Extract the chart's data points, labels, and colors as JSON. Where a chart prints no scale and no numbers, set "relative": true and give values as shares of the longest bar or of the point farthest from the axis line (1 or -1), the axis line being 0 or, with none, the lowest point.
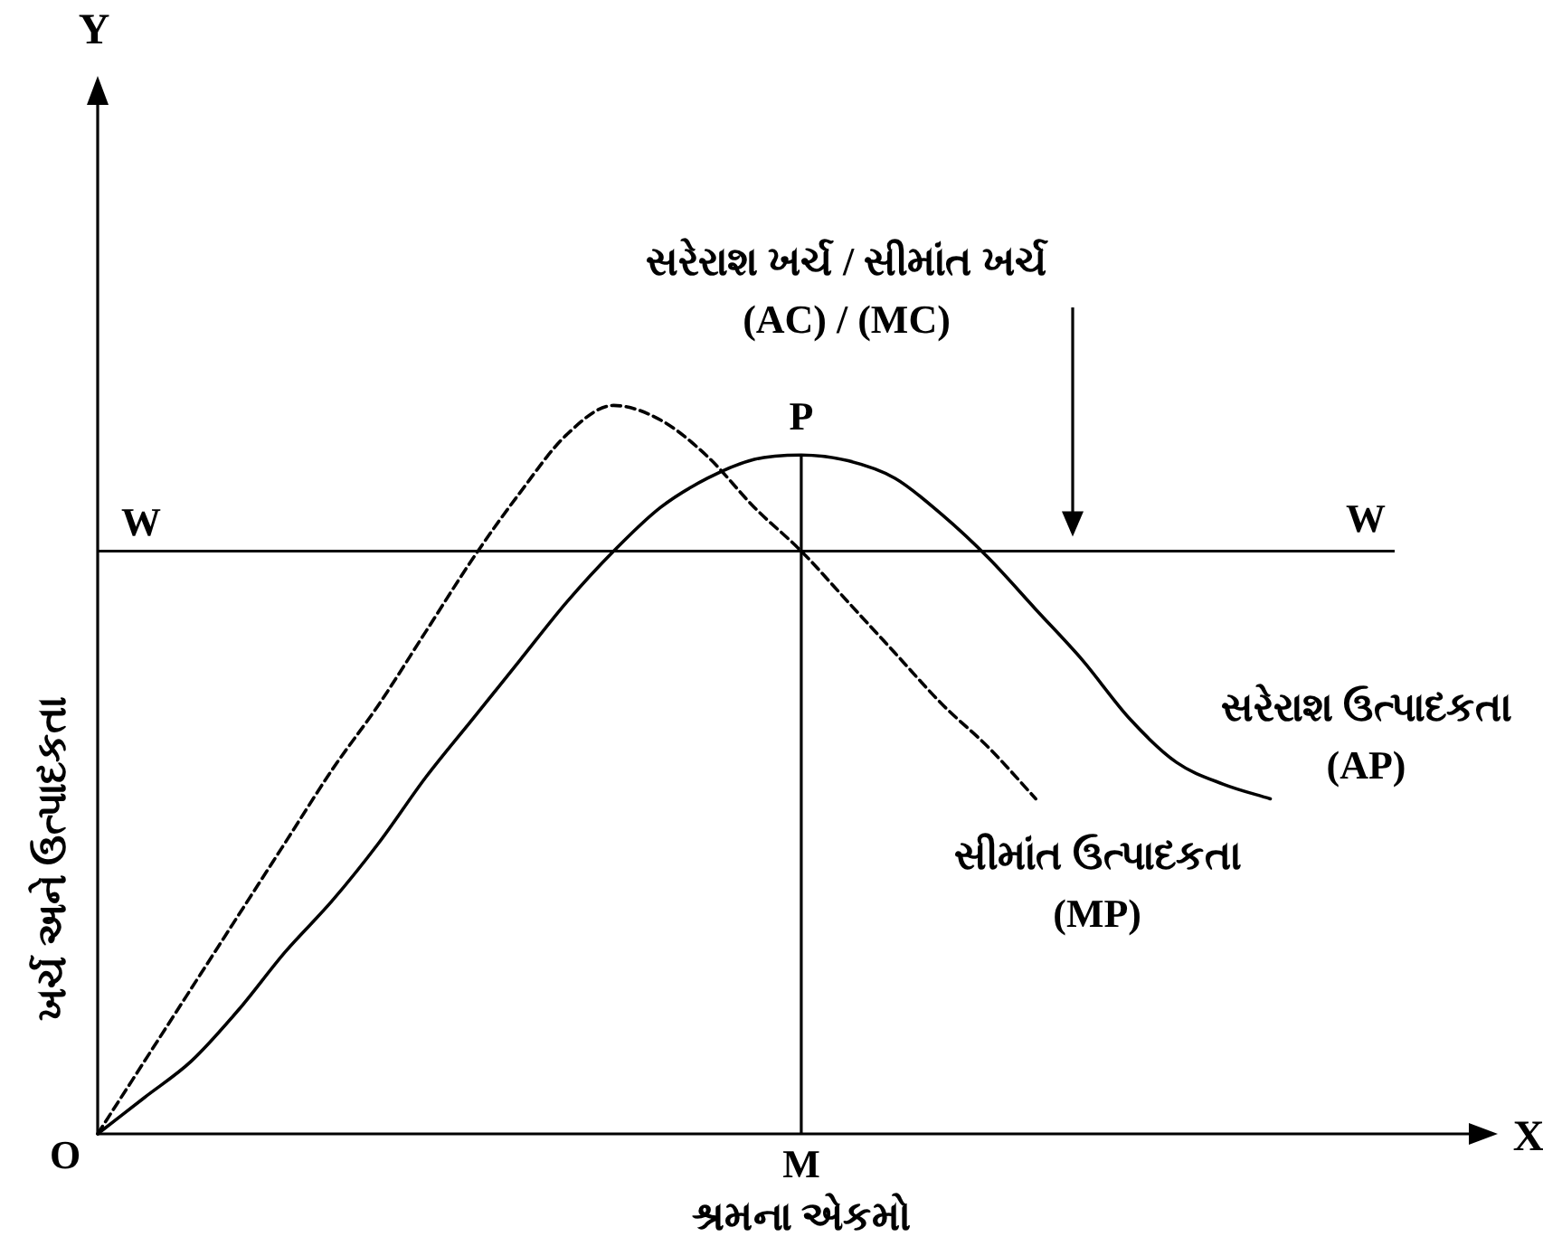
{
  "chart_data": {
    "type": "line",
    "relative": true,
    "xlabel": "શ્રમના એકમો",
    "ylabel": "ખર્ચ અને ઉત્પાદકતા",
    "categories": [
      null,
      null,
      null,
      null,
      null,
      null,
      null,
      null,
      null,
      null,
      null,
      null,
      null,
      null,
      null,
      null,
      null,
      null,
      null,
      null,
      null,
      null,
      null,
      null,
      null,
      null,
      null,
      null
    ],
    "series": [
      {
        "name": "સરેરાશ ઉત્પાદકતા\n(AP)",
        "color": "#000000",
        "line_style": "solid",
        "values": [
          0,
          0.05,
          0.1,
          0.17,
          0.25,
          0.32,
          0.4,
          0.49,
          0.57,
          0.65,
          0.73,
          0.8,
          0.86,
          0.9,
          0.926,
          0.932,
          0.924,
          0.9,
          0.85,
          0.79,
          0.72,
          0.65,
          0.57,
          0.51,
          0.48,
          0.46,
          null,
          null
        ]
      },
      {
        "name": "સીમાંત ઉત્પાદકતા\n(MP)",
        "color": "#000000",
        "line_style": "dashed",
        "values": [
          0,
          0.1,
          0.2,
          0.3,
          0.4,
          0.5,
          0.59,
          0.69,
          0.79,
          0.88,
          0.96,
          1,
          0.98,
          0.93,
          0.86,
          0.8,
          0.73,
          0.66,
          0.59,
          0.53,
          0.46,
          null,
          null,
          null,
          null,
          null,
          null,
          null
        ]
      }
    ],
    "ref_lines": [
      {
        "axis": "y",
        "value": 0.8,
        "label": "W",
        "color": "#000000"
      }
    ],
    "annotations": [
      "Y",
      "X",
      "O",
      "સરેરાશ ખર્ચ / સીમાંત ખર્ચ\n(AC) / (MC)",
      "P",
      "W",
      "M"
    ]
  }
}
